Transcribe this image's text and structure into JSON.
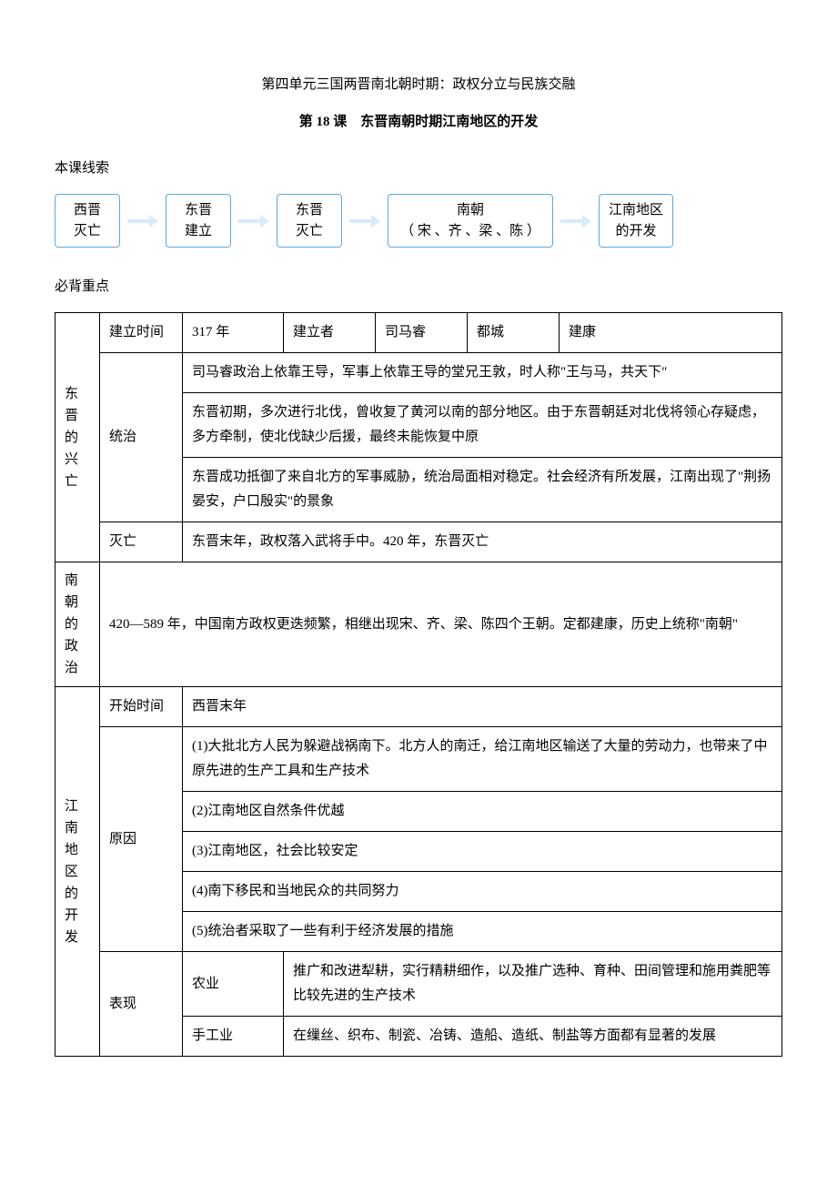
{
  "header": {
    "unit_title": "第四单元三国两晋南北朝时期：政权分立与民族交融",
    "lesson_title": "第 18 课　东晋南朝时期江南地区的开发"
  },
  "section_labels": {
    "outline": "本课线索",
    "keynotes": "必背重点"
  },
  "flow": {
    "box1_l1": "西晋",
    "box1_l2": "灭亡",
    "box2_l1": "东晋",
    "box2_l2": "建立",
    "box3_l1": "东晋",
    "box3_l2": "灭亡",
    "box4_l1": "南朝",
    "box4_l2": "（ 宋 、齐 、梁 、陈 ）",
    "box5_l1": "江南地区",
    "box5_l2": "的开发"
  },
  "table": {
    "row1": {
      "col_time_label": "建立时间",
      "col_time_value": "317 年",
      "col_founder_label": "建立者",
      "col_founder_value": "司马睿",
      "col_capital_label": "都城",
      "col_capital_value": "建康"
    },
    "sectionA_title": "东晋的兴亡",
    "sectionA_rule_label": "统治",
    "sectionA_rule_p1": "司马睿政治上依靠王导，军事上依靠王导的堂兄王敦，时人称\"王与马，共天下\"",
    "sectionA_rule_p2": "东晋初期，多次进行北伐，曾收复了黄河以南的部分地区。由于东晋朝廷对北伐将领心存疑虑，多方牵制，使北伐缺少后援，最终未能恢复中原",
    "sectionA_rule_p3": "东晋成功抵御了来自北方的军事威胁，统治局面相对稳定。社会经济有所发展，江南出现了\"荆扬晏安，户口殷实\"的景象",
    "sectionA_fall_label": "灭亡",
    "sectionA_fall_value": "东晋末年，政权落入武将手中。420 年，东晋灭亡",
    "sectionB_title": "南朝的政治",
    "sectionB_text": "420—589 年，中国南方政权更迭频繁，相继出现宋、齐、梁、陈四个王朝。定都建康，历史上统称\"南朝\"",
    "sectionC_title": "江南地区的开发",
    "sectionC_start_label": "开始时间",
    "sectionC_start_value": "西晋末年",
    "sectionC_reason_label": "原因",
    "sectionC_reason_1": "(1)大批北方人民为躲避战祸南下。北方人的南迁，给江南地区输送了大量的劳动力，也带来了中原先进的生产工具和生产技术",
    "sectionC_reason_2": "(2)江南地区自然条件优越",
    "sectionC_reason_3": "(3)江南地区，社会比较安定",
    "sectionC_reason_4": "(4)南下移民和当地民众的共同努力",
    "sectionC_reason_5": "(5)统治者采取了一些有利于经济发展的措施",
    "sectionC_perf_label": "表现",
    "sectionC_perf_agri_label": "农业",
    "sectionC_perf_agri_text": "推广和改进犁耕，实行精耕细作，以及推广选种、育种、田间管理和施用粪肥等比较先进的生产技术",
    "sectionC_perf_craft_label": "手工业",
    "sectionC_perf_craft_text": "在缫丝、织布、制瓷、冶铸、造船、造纸、制盐等方面都有显著的发展"
  }
}
